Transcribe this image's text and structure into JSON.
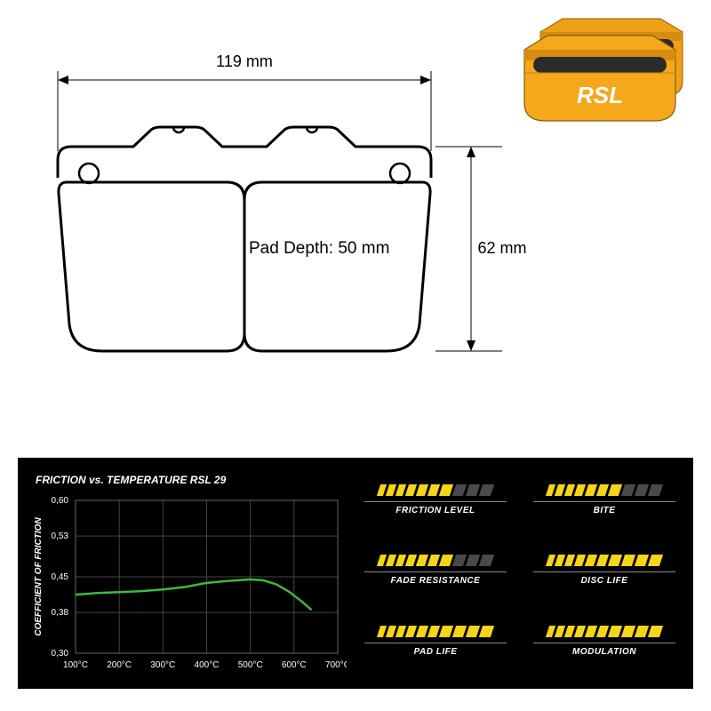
{
  "product": {
    "brand": "RSL",
    "body_color": "#f5a81c",
    "accent_color": "#2b2b2b"
  },
  "diagram": {
    "width_label": "119 mm",
    "height_label": "62 mm",
    "depth_label": "Pad Depth: 50 mm",
    "stroke": "#000000",
    "text_fontsize": 18
  },
  "chart": {
    "title": "FRICTION vs. TEMPERATURE RSL 29",
    "ylabel": "COEFFICIENT OF FRICTION",
    "x_ticks": [
      "100°C",
      "200°C",
      "300°C",
      "400°C",
      "500°C",
      "600°C",
      "700°C"
    ],
    "y_ticks": [
      "0,30",
      "0,38",
      "0,45",
      "0,53",
      "0,60"
    ],
    "ylim": [
      0.3,
      0.6
    ],
    "xlim": [
      100,
      700
    ],
    "curve_color": "#3fb83f",
    "background": "#000000",
    "grid_color": "#444444",
    "text_color": "#ffffff",
    "curve_points": [
      {
        "x": 100,
        "y": 0.415
      },
      {
        "x": 150,
        "y": 0.418
      },
      {
        "x": 200,
        "y": 0.42
      },
      {
        "x": 250,
        "y": 0.422
      },
      {
        "x": 300,
        "y": 0.425
      },
      {
        "x": 350,
        "y": 0.43
      },
      {
        "x": 400,
        "y": 0.438
      },
      {
        "x": 450,
        "y": 0.442
      },
      {
        "x": 500,
        "y": 0.445
      },
      {
        "x": 530,
        "y": 0.443
      },
      {
        "x": 560,
        "y": 0.435
      },
      {
        "x": 590,
        "y": 0.42
      },
      {
        "x": 620,
        "y": 0.4
      },
      {
        "x": 640,
        "y": 0.385
      }
    ]
  },
  "ratings": {
    "bar_on_color": "#f5d516",
    "bar_off_color": "#4a4a4a",
    "bar_count": 10,
    "items": [
      {
        "label": "FRICTION LEVEL",
        "value": 7
      },
      {
        "label": "BITE",
        "value": 7
      },
      {
        "label": "FADE RESISTANCE",
        "value": 7
      },
      {
        "label": "DISC LIFE",
        "value": 10
      },
      {
        "label": "PAD LIFE",
        "value": 10
      },
      {
        "label": "MODULATION",
        "value": 10
      }
    ]
  }
}
